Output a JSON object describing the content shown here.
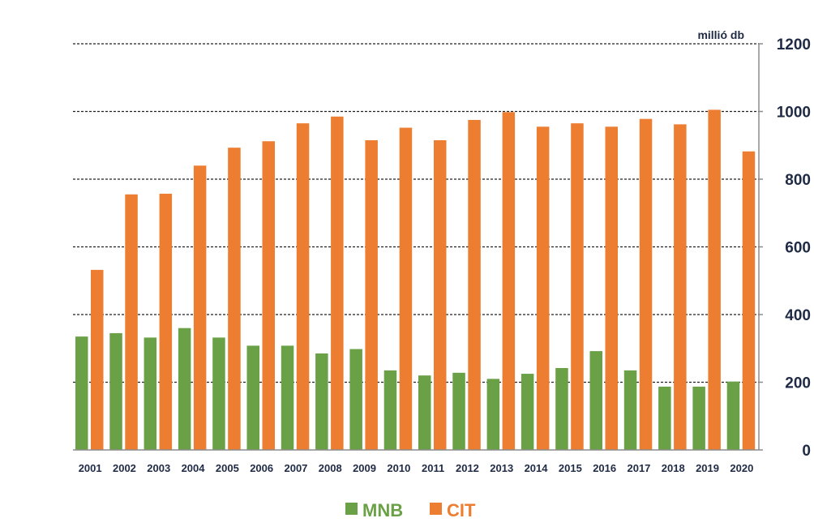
{
  "chart_data": {
    "type": "bar",
    "unit_label": "millió db",
    "categories": [
      "2001",
      "2002",
      "2003",
      "2004",
      "2005",
      "2006",
      "2007",
      "2008",
      "2009",
      "2010",
      "2011",
      "2012",
      "2013",
      "2014",
      "2015",
      "2016",
      "2017",
      "2018",
      "2019",
      "2020"
    ],
    "series": [
      {
        "name": "MNB",
        "color": "#6aa147",
        "values": [
          335,
          345,
          332,
          360,
          332,
          308,
          308,
          285,
          298,
          235,
          220,
          228,
          210,
          225,
          242,
          292,
          235,
          187,
          187,
          202
        ]
      },
      {
        "name": "CIT",
        "color": "#ed7d31",
        "values": [
          532,
          755,
          757,
          840,
          893,
          912,
          965,
          985,
          915,
          952,
          915,
          975,
          998,
          955,
          965,
          955,
          978,
          962,
          1005,
          882
        ]
      }
    ],
    "ylim": [
      0,
      1200
    ],
    "yticks": [
      0,
      200,
      400,
      600,
      800,
      1000,
      1200
    ],
    "yaxis_side": "right",
    "grid": "dashed horizontal",
    "legend_position": "bottom-center",
    "title": "",
    "xlabel": "",
    "ylabel": ""
  }
}
